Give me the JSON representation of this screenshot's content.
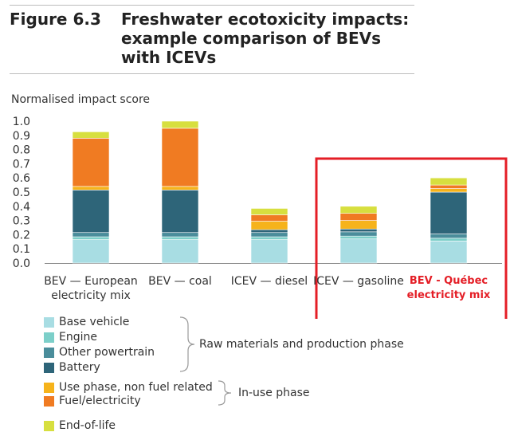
{
  "figure": {
    "label": "Figure 6.3",
    "title": "Freshwater ecotoxicity impacts: example comparison of BEVs with ICEVs"
  },
  "chart_data": {
    "type": "bar",
    "stacked": true,
    "ylabel": "Normalised impact score",
    "ylim": [
      0,
      1.0
    ],
    "yticks": [
      "0.0",
      "0.1",
      "0.2",
      "0.3",
      "0.4",
      "0.5",
      "0.6",
      "0.7",
      "0.8",
      "0.9",
      "1.0"
    ],
    "categories": [
      [
        "BEV — European",
        "electricity mix"
      ],
      [
        "BEV — coal"
      ],
      [
        "ICEV — diesel"
      ],
      [
        "ICEV — gasoline"
      ],
      [
        "BEV - Québec",
        "electricity mix"
      ]
    ],
    "series": [
      {
        "name": "Base vehicle",
        "color": "#a8dde3",
        "values": [
          0.165,
          0.165,
          0.165,
          0.17,
          0.155
        ]
      },
      {
        "name": "Engine",
        "color": "#7ccfc9",
        "values": [
          0.02,
          0.02,
          0.02,
          0.02,
          0.02
        ]
      },
      {
        "name": "Other powertrain",
        "color": "#4a8d9b",
        "values": [
          0.03,
          0.03,
          0.03,
          0.03,
          0.03
        ]
      },
      {
        "name": "Battery",
        "color": "#2e6579",
        "values": [
          0.3,
          0.3,
          0.02,
          0.02,
          0.295
        ]
      },
      {
        "name": "Use phase, non fuel related",
        "color": "#f6b31b",
        "values": [
          0.025,
          0.025,
          0.06,
          0.06,
          0.025
        ]
      },
      {
        "name": "Fuel/electricity",
        "color": "#f07b22",
        "values": [
          0.34,
          0.41,
          0.045,
          0.05,
          0.025
        ]
      },
      {
        "name": "End-of-life",
        "color": "#d7df3f",
        "values": [
          0.045,
          0.05,
          0.045,
          0.05,
          0.05
        ]
      }
    ],
    "highlight_category_index": 4,
    "highlight_color": "#e41e26",
    "grid": false,
    "legend_position": "bottom-left"
  },
  "legend_groups": {
    "raw_materials": "Raw materials and production phase",
    "in_use": "In-use phase"
  }
}
